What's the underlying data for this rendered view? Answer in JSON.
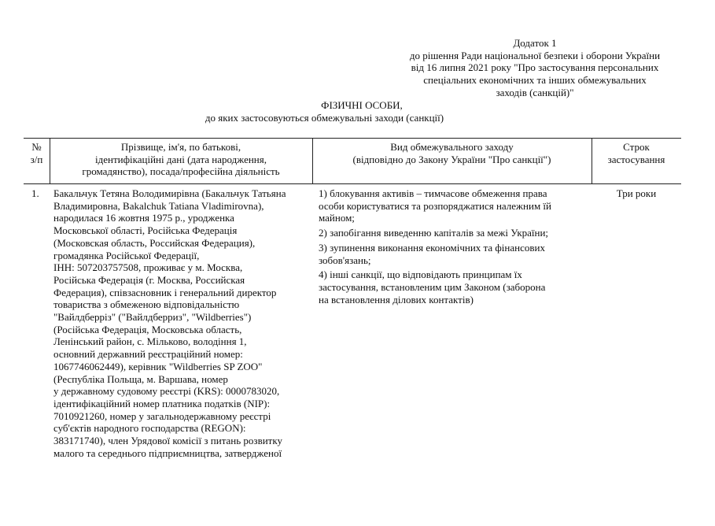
{
  "annex": {
    "lines": [
      "Додаток 1",
      "до рішення Ради національної безпеки і оборони України",
      "від 16 липня 2021 року \"Про застосування персональних",
      "спеціальних економічних та інших обмежувальних",
      "заходів (санкцій)\""
    ]
  },
  "title": {
    "main": "ФІЗИЧНІ ОСОБИ,",
    "subtitle": "до яких застосовуються обмежувальні заходи (санкції)"
  },
  "table": {
    "headers": {
      "number": [
        "№",
        "з/п"
      ],
      "person": [
        "Прізвище, ім'я, по батькові,",
        "ідентифікаційні дані (дата народження,",
        "громадянство), посада/професійна діяльність"
      ],
      "measure": [
        "Вид обмежувального заходу",
        "(відповідно до Закону України \"Про санкції\")"
      ],
      "term": [
        "Строк",
        "застосування"
      ]
    },
    "rows": [
      {
        "number": "1.",
        "person_lines": [
          "Бакальчук Тетяна Володимирівна (Бакальчук Татьяна",
          "Владимировна, Bakalchuk Tatiana Vladimirovna),",
          "народилася 16 жовтня 1975 р., уродженка",
          "Московської області, Російська Федерація",
          "(Московская область, Российская Федерация),",
          "громадянка Російської Федерації,",
          "ІНН: 507203757508, проживає у м. Москва,",
          "Російська Федерація (г. Москва, Российская",
          "Федерация), співзасновник і генеральний директор",
          "товариства з обмеженою відповідальністю",
          "\"Вайлдберріз\" (\"Вайлдберриз\", \"Wildberries\")",
          "(Російська Федерація, Московська область,",
          "Ленінський район, с. Мільково, володіння 1,",
          "основний державний реєстраційний номер:",
          "1067746062449), керівник \"Wildberries SP ZOO\"",
          "(Республіка Польща, м. Варшава, номер",
          "у державному судовому реєстрі (KRS): 0000783020,",
          "ідентифікаційний номер платника податків (NIP):",
          "7010921260, номер у загальнодержавному реєстрі",
          "суб'єктів народного господарства (REGON):",
          "383171740), член Урядової комісії з питань розвитку",
          "малого та середнього підприємництва, затвердженої"
        ],
        "measures": [
          [
            "1) блокування активів – тимчасове обмеження права",
            "особи користуватися та розпоряджатися належним їй",
            "майном;"
          ],
          [
            "2) запобігання виведенню капіталів за межі України;"
          ],
          [
            "3) зупинення виконання економічних та фінансових",
            "зобов'язань;"
          ],
          [
            "4) інші санкції, що відповідають принципам їх",
            "застосування, встановленим цим Законом (заборона",
            "на встановлення ділових контактів)"
          ]
        ],
        "term": "Три роки"
      }
    ]
  }
}
